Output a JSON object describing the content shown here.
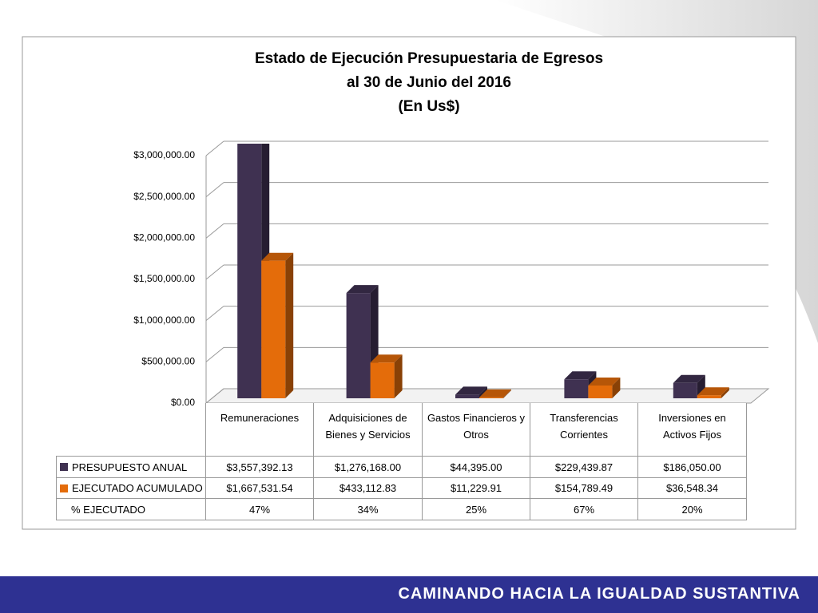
{
  "chart_data": {
    "type": "bar3d",
    "title": "Estado de Ejecución Presupuestaria de Egresos",
    "subtitle": "al 30 de Junio del 2016",
    "unit_note": "(En Us$)",
    "categories": [
      "Remuneraciones",
      "Adquisiciones de Bienes y Servicios",
      "Gastos Financieros y Otros",
      "Transferencias Corrientes",
      "Inversiones en Activos Fijos"
    ],
    "series": [
      {
        "name": "PRESUPUESTO ANUAL",
        "color": "#3f3151",
        "values": [
          3557392.13,
          1276168.0,
          44395.0,
          229439.87,
          186050.0
        ],
        "value_labels": [
          "$3,557,392.13",
          "$1,276,168.00",
          "$44,395.00",
          "$229,439.87",
          "$186,050.00"
        ]
      },
      {
        "name": "EJECUTADO ACUMULADO",
        "color": "#e46c0a",
        "values": [
          1667531.54,
          433112.83,
          11229.91,
          154789.49,
          36548.34
        ],
        "value_labels": [
          "$1,667,531.54",
          "$433,112.83",
          "$11,229.91",
          "$154,789.49",
          "$36,548.34"
        ]
      }
    ],
    "percent_row": {
      "name": "% EJECUTADO",
      "values": [
        47,
        34,
        25,
        67,
        20
      ],
      "value_labels": [
        "47%",
        "34%",
        "25%",
        "67%",
        "20%"
      ]
    },
    "ylim": [
      0,
      3000000
    ],
    "yticks": [
      {
        "value": 0,
        "label": "$0.00"
      },
      {
        "value": 500000,
        "label": "$500,000.00"
      },
      {
        "value": 1000000,
        "label": "$1,000,000.00"
      },
      {
        "value": 1500000,
        "label": "$1,500,000.00"
      },
      {
        "value": 2000000,
        "label": "$2,000,000.00"
      },
      {
        "value": 2500000,
        "label": "$2,500,000.00"
      },
      {
        "value": 3000000,
        "label": "$3,000,000.00"
      }
    ],
    "grid": true
  },
  "footer": "CAMINANDO HACIA LA IGUALDAD SUSTANTIVA"
}
